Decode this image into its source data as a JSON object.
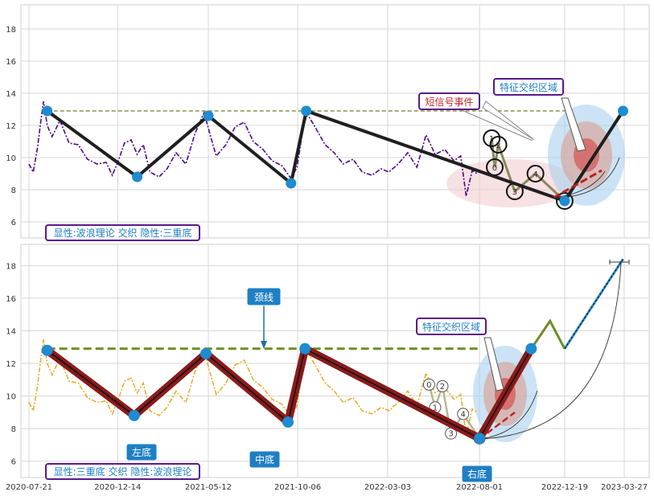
{
  "chart_data": [
    {
      "type": "line",
      "panel": "top",
      "ylim": [
        5,
        19.5
      ],
      "yticks": [
        6,
        8,
        10,
        12,
        14,
        16,
        18
      ],
      "grid": true,
      "xrange": [
        "2020-07-21",
        "2023-04-01"
      ],
      "series": [
        {
          "values": [
            [
              "2020-07-21",
              9.6
            ],
            [
              "2020-07-28",
              9.1
            ],
            [
              "2020-08-04",
              10.6
            ],
            [
              "2020-08-10",
              12.4
            ],
            [
              "2020-08-14",
              13.5
            ],
            [
              "2020-08-20",
              12.0
            ],
            [
              "2020-08-28",
              11.3
            ],
            [
              "2020-09-10",
              12.3
            ],
            [
              "2020-09-25",
              10.9
            ],
            [
              "2020-10-10",
              10.8
            ],
            [
              "2020-10-25",
              9.9
            ],
            [
              "2020-11-10",
              9.6
            ],
            [
              "2020-11-25",
              9.7
            ],
            [
              "2020-12-05",
              8.9
            ],
            [
              "2020-12-15",
              9.8
            ],
            [
              "2020-12-25",
              10.9
            ],
            [
              "2021-01-05",
              11.1
            ],
            [
              "2021-01-15",
              10.2
            ],
            [
              "2021-01-25",
              10.8
            ],
            [
              "2021-02-05",
              9.1
            ],
            [
              "2021-02-20",
              8.8
            ],
            [
              "2021-03-05",
              9.3
            ],
            [
              "2021-03-20",
              10.3
            ],
            [
              "2021-04-05",
              9.6
            ],
            [
              "2021-04-20",
              11.5
            ],
            [
              "2021-05-05",
              12.8
            ],
            [
              "2021-05-15",
              11.4
            ],
            [
              "2021-05-25",
              10.1
            ],
            [
              "2021-06-10",
              10.8
            ],
            [
              "2021-06-25",
              11.9
            ],
            [
              "2021-07-10",
              12.2
            ],
            [
              "2021-07-25",
              11.0
            ],
            [
              "2021-08-10",
              10.5
            ],
            [
              "2021-08-25",
              9.8
            ],
            [
              "2021-09-10",
              9.5
            ],
            [
              "2021-09-25",
              8.7
            ],
            [
              "2021-10-05",
              9.4
            ],
            [
              "2021-10-15",
              11.9
            ],
            [
              "2021-10-22",
              12.7
            ],
            [
              "2021-11-05",
              11.8
            ],
            [
              "2021-11-20",
              10.8
            ],
            [
              "2021-12-05",
              10.3
            ],
            [
              "2021-12-20",
              9.6
            ],
            [
              "2022-01-05",
              9.9
            ],
            [
              "2022-01-20",
              9.1
            ],
            [
              "2022-02-05",
              8.9
            ],
            [
              "2022-02-20",
              9.3
            ],
            [
              "2022-03-05",
              9.1
            ],
            [
              "2022-03-20",
              9.6
            ],
            [
              "2022-04-05",
              10.3
            ],
            [
              "2022-04-20",
              9.4
            ],
            [
              "2022-05-05",
              11.4
            ],
            [
              "2022-05-20",
              10.2
            ],
            [
              "2022-06-05",
              10.5
            ],
            [
              "2022-06-20",
              9.8
            ],
            [
              "2022-07-01",
              10.1
            ],
            [
              "2022-07-10",
              7.6
            ],
            [
              "2022-07-20",
              9.2
            ],
            [
              "2022-07-28",
              9.0
            ]
          ],
          "color": "#4b0a8a"
        }
      ],
      "wave_line": {
        "points": [
          [
            "2020-08-20",
            12.9
          ],
          [
            "2021-01-15",
            8.8
          ],
          [
            "2021-05-12",
            12.6
          ],
          [
            "2021-09-25",
            8.4
          ],
          [
            "2021-10-20",
            12.9
          ],
          [
            "2022-12-19",
            7.3
          ],
          [
            "2023-03-25",
            12.9
          ]
        ],
        "color": "#1f1f1f"
      },
      "neckline": {
        "y": 12.9,
        "x": [
          "2020-08-20",
          "2022-12-19"
        ],
        "color": "#7a7a2a"
      },
      "small_wave": {
        "points": [
          [
            "2022-08-21",
            11.2
          ],
          [
            "2022-08-26",
            9.4
          ],
          [
            "2022-09-01",
            10.8
          ],
          [
            "2022-09-28",
            7.9
          ],
          [
            "2022-11-01",
            9.0
          ],
          [
            "2022-12-19",
            7.3
          ]
        ],
        "labels": [
          "1",
          "0",
          "2",
          "3",
          "4",
          "5"
        ]
      },
      "annotations": [
        "短信号事件",
        "特征交织区域"
      ],
      "caption": "显性:波浪理论 交织 隐性:三重底"
    },
    {
      "type": "line",
      "panel": "bottom",
      "ylim": [
        5,
        19.3
      ],
      "yticks": [
        6,
        8,
        10,
        12,
        14,
        16,
        18
      ],
      "grid": true,
      "xrange": [
        "2020-07-21",
        "2023-04-01"
      ],
      "xticks": [
        "2020-07-21",
        "2020-12-14",
        "2021-05-12",
        "2021-10-06",
        "2022-03-03",
        "2022-08-01",
        "2022-12-19",
        "2023-03-27"
      ],
      "series": [
        {
          "values": [
            [
              "2020-07-21",
              9.6
            ],
            [
              "2020-07-28",
              9.1
            ],
            [
              "2020-08-04",
              10.6
            ],
            [
              "2020-08-10",
              12.4
            ],
            [
              "2020-08-14",
              13.5
            ],
            [
              "2020-08-20",
              12.0
            ],
            [
              "2020-08-28",
              11.3
            ],
            [
              "2020-09-10",
              12.3
            ],
            [
              "2020-09-25",
              10.9
            ],
            [
              "2020-10-10",
              10.8
            ],
            [
              "2020-10-25",
              9.9
            ],
            [
              "2020-11-10",
              9.6
            ],
            [
              "2020-11-25",
              9.7
            ],
            [
              "2020-12-05",
              8.9
            ],
            [
              "2020-12-15",
              9.8
            ],
            [
              "2020-12-25",
              10.9
            ],
            [
              "2021-01-05",
              11.1
            ],
            [
              "2021-01-15",
              10.2
            ],
            [
              "2021-01-25",
              10.8
            ],
            [
              "2021-02-05",
              9.1
            ],
            [
              "2021-02-20",
              8.8
            ],
            [
              "2021-03-05",
              9.3
            ],
            [
              "2021-03-20",
              10.3
            ],
            [
              "2021-04-05",
              9.6
            ],
            [
              "2021-04-20",
              11.5
            ],
            [
              "2021-05-05",
              12.8
            ],
            [
              "2021-05-15",
              11.4
            ],
            [
              "2021-05-25",
              10.1
            ],
            [
              "2021-06-10",
              10.8
            ],
            [
              "2021-06-25",
              11.9
            ],
            [
              "2021-07-10",
              12.2
            ],
            [
              "2021-07-25",
              11.0
            ],
            [
              "2021-08-10",
              10.5
            ],
            [
              "2021-08-25",
              9.8
            ],
            [
              "2021-09-10",
              9.5
            ],
            [
              "2021-09-25",
              8.7
            ],
            [
              "2021-10-05",
              9.4
            ],
            [
              "2021-10-15",
              11.9
            ],
            [
              "2021-10-22",
              12.7
            ],
            [
              "2021-11-05",
              11.8
            ],
            [
              "2021-11-20",
              10.8
            ],
            [
              "2021-12-05",
              10.3
            ],
            [
              "2021-12-20",
              9.6
            ],
            [
              "2022-01-05",
              9.9
            ],
            [
              "2022-01-20",
              9.1
            ],
            [
              "2022-02-05",
              8.9
            ],
            [
              "2022-02-20",
              9.3
            ],
            [
              "2022-03-05",
              9.1
            ],
            [
              "2022-03-20",
              9.6
            ],
            [
              "2022-04-05",
              10.3
            ],
            [
              "2022-04-20",
              9.4
            ],
            [
              "2022-05-05",
              11.4
            ],
            [
              "2022-05-20",
              10.2
            ],
            [
              "2022-06-05",
              10.5
            ],
            [
              "2022-06-20",
              9.8
            ],
            [
              "2022-07-01",
              10.1
            ],
            [
              "2022-07-10",
              7.6
            ],
            [
              "2022-07-20",
              9.2
            ],
            [
              "2022-07-28",
              9.0
            ]
          ],
          "color": "#e6b030"
        }
      ],
      "pattern_line": {
        "points": [
          [
            "2020-08-20",
            12.8
          ],
          [
            "2021-01-10",
            8.8
          ],
          [
            "2021-05-08",
            12.6
          ],
          [
            "2021-09-20",
            8.4
          ],
          [
            "2021-10-18",
            12.9
          ],
          [
            "2022-08-01",
            7.4
          ],
          [
            "2022-10-25",
            12.9
          ]
        ],
        "color": "#8b1a1a"
      },
      "neckline": {
        "y": 12.9,
        "x": [
          "2020-08-20",
          "2022-08-01"
        ],
        "color": "#6b8e23"
      },
      "projection": {
        "points": [
          [
            "2022-10-25",
            12.9
          ],
          [
            "2022-11-25",
            14.6
          ],
          [
            "2022-12-19",
            12.9
          ],
          [
            "2023-03-25",
            18.4
          ]
        ]
      },
      "small_wave": {
        "points": [
          [
            "2022-05-10",
            10.7
          ],
          [
            "2022-05-20",
            9.3
          ],
          [
            "2022-06-01",
            10.6
          ],
          [
            "2022-06-15",
            7.7
          ],
          [
            "2022-07-05",
            8.9
          ],
          [
            "2022-08-01",
            7.4
          ]
        ],
        "labels": [
          "0",
          "1",
          "2",
          "3",
          "4",
          "5"
        ]
      },
      "annotations": [
        "颈线",
        "特征交织区域",
        "左底",
        "中底",
        "右底"
      ],
      "caption": "显性:三重底 交织 隐性:波浪理论"
    }
  ],
  "colors": {
    "marker": "#1f8bd0",
    "annotation_border": "#5a1a8a",
    "label_box": "#1f7fc4"
  }
}
